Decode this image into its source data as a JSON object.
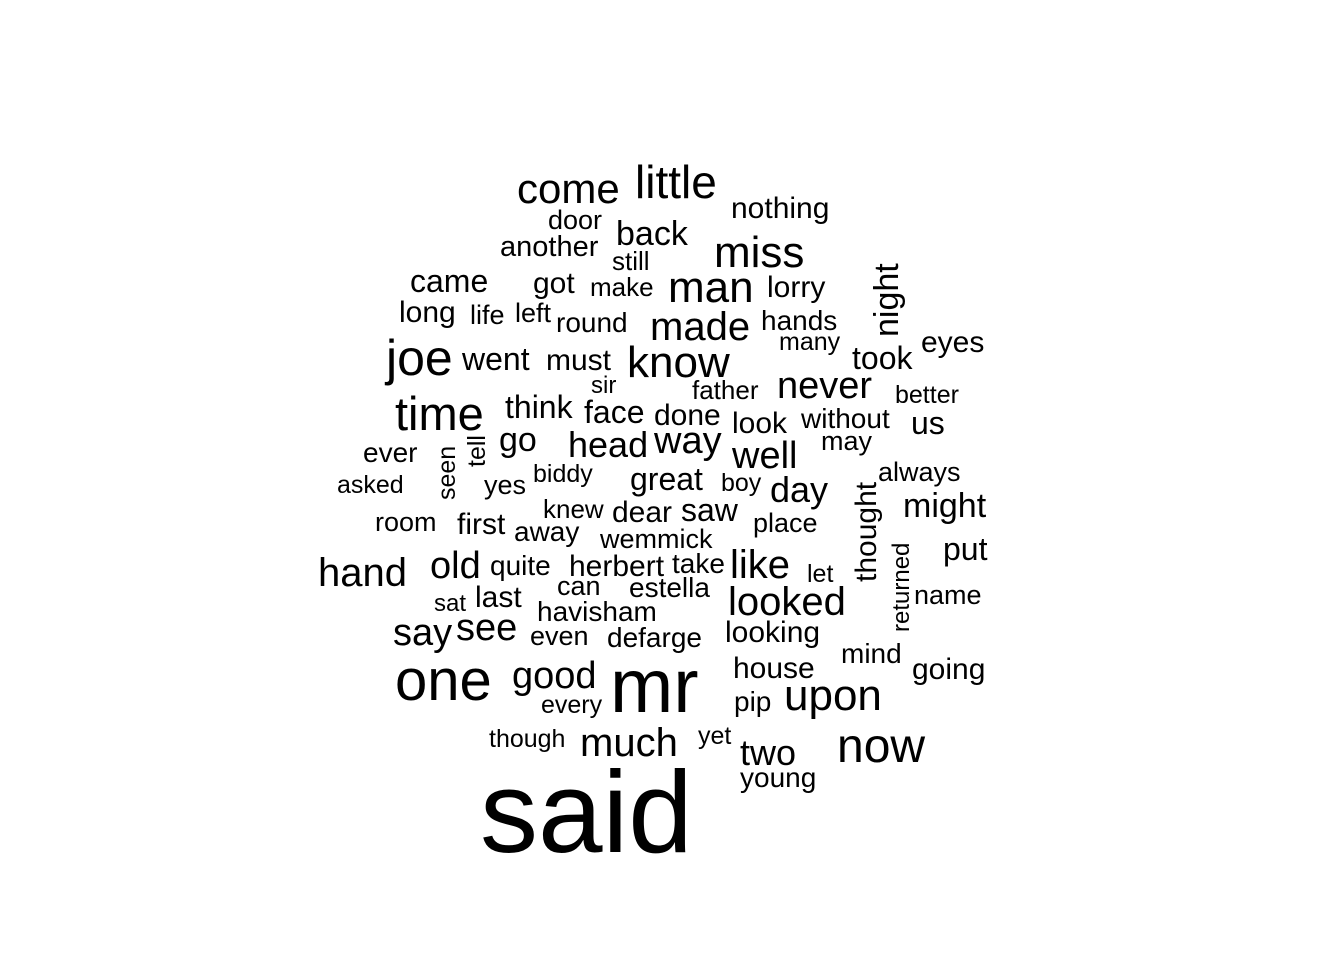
{
  "chart_data": {
    "type": "wordcloud",
    "color": "#000000",
    "words": [
      {
        "text": "said"
      },
      {
        "text": "mr"
      },
      {
        "text": "one"
      },
      {
        "text": "now"
      },
      {
        "text": "upon"
      },
      {
        "text": "joe"
      },
      {
        "text": "time"
      },
      {
        "text": "know"
      },
      {
        "text": "little"
      },
      {
        "text": "come"
      },
      {
        "text": "man"
      },
      {
        "text": "miss"
      },
      {
        "text": "made"
      },
      {
        "text": "looked"
      },
      {
        "text": "much"
      },
      {
        "text": "good"
      },
      {
        "text": "never"
      },
      {
        "text": "say"
      },
      {
        "text": "see"
      },
      {
        "text": "hand"
      },
      {
        "text": "old"
      },
      {
        "text": "like"
      },
      {
        "text": "well"
      },
      {
        "text": "head"
      },
      {
        "text": "way"
      },
      {
        "text": "night"
      },
      {
        "text": "two"
      },
      {
        "text": "day"
      },
      {
        "text": "might"
      },
      {
        "text": "back"
      },
      {
        "text": "go"
      },
      {
        "text": "went"
      },
      {
        "text": "think"
      },
      {
        "text": "face"
      },
      {
        "text": "great"
      },
      {
        "text": "came"
      },
      {
        "text": "took"
      },
      {
        "text": "looking"
      },
      {
        "text": "going"
      },
      {
        "text": "thought"
      },
      {
        "text": "saw"
      },
      {
        "text": "put"
      },
      {
        "text": "us"
      },
      {
        "text": "eyes"
      },
      {
        "text": "nothing"
      },
      {
        "text": "must"
      },
      {
        "text": "done"
      },
      {
        "text": "last"
      },
      {
        "text": "house"
      },
      {
        "text": "look"
      },
      {
        "text": "lorry"
      },
      {
        "text": "got"
      },
      {
        "text": "long"
      },
      {
        "text": "herbert"
      },
      {
        "text": "dear"
      },
      {
        "text": "another"
      },
      {
        "text": "first"
      },
      {
        "text": "without"
      },
      {
        "text": "hands"
      },
      {
        "text": "round"
      },
      {
        "text": "defarge"
      },
      {
        "text": "havisham"
      },
      {
        "text": "take"
      },
      {
        "text": "away"
      },
      {
        "text": "ever"
      },
      {
        "text": "mind"
      },
      {
        "text": "pip"
      },
      {
        "text": "young"
      },
      {
        "text": "quite"
      },
      {
        "text": "estella"
      },
      {
        "text": "wemmick"
      },
      {
        "text": "place"
      },
      {
        "text": "may"
      },
      {
        "text": "door"
      },
      {
        "text": "name"
      },
      {
        "text": "always"
      },
      {
        "text": "even"
      },
      {
        "text": "yes"
      },
      {
        "text": "can"
      },
      {
        "text": "knew"
      },
      {
        "text": "room"
      },
      {
        "text": "life"
      },
      {
        "text": "left"
      },
      {
        "text": "make"
      },
      {
        "text": "still"
      },
      {
        "text": "father"
      },
      {
        "text": "better"
      },
      {
        "text": "many"
      },
      {
        "text": "asked"
      },
      {
        "text": "biddy"
      },
      {
        "text": "boy"
      },
      {
        "text": "every"
      },
      {
        "text": "though"
      },
      {
        "text": "yet"
      },
      {
        "text": "let"
      },
      {
        "text": "sat"
      },
      {
        "text": "sir"
      },
      {
        "text": "tell"
      },
      {
        "text": "seen"
      },
      {
        "text": "returned"
      }
    ]
  }
}
